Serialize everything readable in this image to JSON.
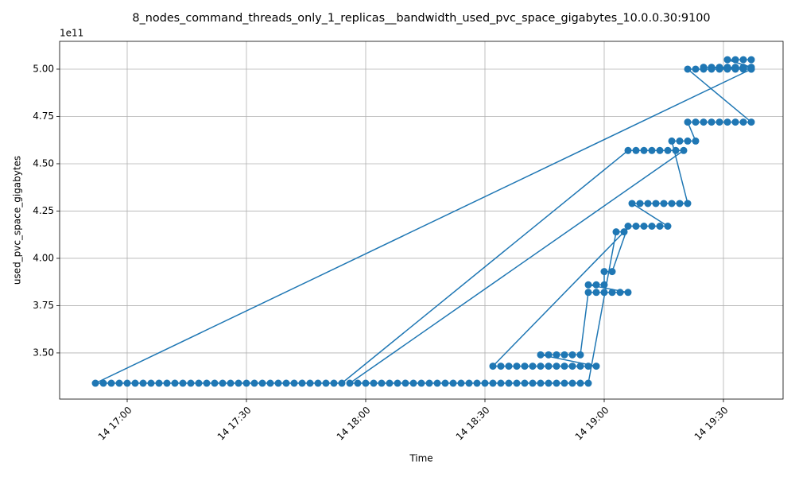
{
  "chart_data": {
    "type": "line",
    "title": "8_nodes_command_threads_only_1_replicas__bandwidth_used_pvc_space_gigabytes_10.0.0.30:9100",
    "x_label": "Time",
    "y_label": "used_pvc_space_gigabytes",
    "y_offset_label": "1e11",
    "color": "#1f77b4",
    "grid": true,
    "markers": true,
    "xlim": [
      "14 16:43",
      "14 19:45"
    ],
    "xticks": [
      "14 17:00",
      "14 17:30",
      "14 18:00",
      "14 18:30",
      "14 19:00",
      "14 19:30"
    ],
    "ylim": [
      3.256,
      5.147
    ],
    "yticks": [
      {
        "value": 3.5,
        "label": "3.50"
      },
      {
        "value": 3.75,
        "label": "3.75"
      },
      {
        "value": 4.0,
        "label": "4.00"
      },
      {
        "value": 4.25,
        "label": "4.25"
      },
      {
        "value": 4.5,
        "label": "4.50"
      },
      {
        "value": 4.75,
        "label": "4.75"
      },
      {
        "value": 5.0,
        "label": "5.00"
      }
    ],
    "x": [
      "14 19:37",
      "14 16:52",
      "14 16:54",
      "14 16:56",
      "14 16:58",
      "14 17:00",
      "14 17:02",
      "14 17:04",
      "14 17:06",
      "14 17:08",
      "14 17:10",
      "14 17:12",
      "14 17:14",
      "14 17:16",
      "14 17:18",
      "14 17:20",
      "14 17:22",
      "14 17:24",
      "14 17:26",
      "14 17:28",
      "14 17:30",
      "14 17:32",
      "14 17:34",
      "14 17:36",
      "14 17:38",
      "14 17:40",
      "14 17:42",
      "14 17:44",
      "14 17:46",
      "14 17:48",
      "14 17:50",
      "14 17:52",
      "14 17:54",
      "14 19:06",
      "14 19:08",
      "14 19:10",
      "14 19:12",
      "14 19:14",
      "14 19:16",
      "14 19:18",
      "14 19:20",
      "14 17:56",
      "14 17:58",
      "14 18:00",
      "14 18:02",
      "14 18:04",
      "14 18:06",
      "14 18:08",
      "14 18:10",
      "14 18:12",
      "14 18:14",
      "14 18:16",
      "14 18:18",
      "14 18:20",
      "14 18:22",
      "14 18:24",
      "14 18:26",
      "14 18:28",
      "14 18:30",
      "14 18:32",
      "14 18:34",
      "14 18:36",
      "14 18:38",
      "14 18:40",
      "14 18:42",
      "14 18:44",
      "14 18:46",
      "14 18:48",
      "14 18:50",
      "14 18:52",
      "14 18:54",
      "14 18:56",
      "14 19:03",
      "14 19:05",
      "14 18:32",
      "14 18:34",
      "14 18:36",
      "14 18:38",
      "14 18:40",
      "14 18:42",
      "14 18:44",
      "14 18:46",
      "14 18:48",
      "14 18:50",
      "14 18:52",
      "14 18:54",
      "14 18:56",
      "14 18:58",
      "14 18:44",
      "14 18:46",
      "14 18:48",
      "14 18:50",
      "14 18:52",
      "14 18:54",
      "14 18:56",
      "14 18:58",
      "14 19:00",
      "14 19:02",
      "14 19:04",
      "14 19:06",
      "14 18:56",
      "14 18:58",
      "14 19:00",
      "14 19:00",
      "14 19:02",
      "14 19:06",
      "14 19:08",
      "14 19:10",
      "14 19:12",
      "14 19:14",
      "14 19:16",
      "14 19:07",
      "14 19:09",
      "14 19:11",
      "14 19:13",
      "14 19:15",
      "14 19:17",
      "14 19:19",
      "14 19:21",
      "14 19:17",
      "14 19:19",
      "14 19:21",
      "14 19:23",
      "14 19:21",
      "14 19:23",
      "14 19:25",
      "14 19:27",
      "14 19:29",
      "14 19:31",
      "14 19:33",
      "14 19:35",
      "14 19:37",
      "14 19:21",
      "14 19:23",
      "14 19:25",
      "14 19:27",
      "14 19:29",
      "14 19:31",
      "14 19:33",
      "14 19:35",
      "14 19:37",
      "14 19:25",
      "14 19:27",
      "14 19:29",
      "14 19:31",
      "14 19:33",
      "14 19:35",
      "14 19:37",
      "14 19:31",
      "14 19:33",
      "14 19:35",
      "14 19:37"
    ],
    "values": [
      5.0,
      3.34,
      3.34,
      3.34,
      3.34,
      3.34,
      3.34,
      3.34,
      3.34,
      3.34,
      3.34,
      3.34,
      3.34,
      3.34,
      3.34,
      3.34,
      3.34,
      3.34,
      3.34,
      3.34,
      3.34,
      3.34,
      3.34,
      3.34,
      3.34,
      3.34,
      3.34,
      3.34,
      3.34,
      3.34,
      3.34,
      3.34,
      3.34,
      4.57,
      4.57,
      4.57,
      4.57,
      4.57,
      4.57,
      4.57,
      4.57,
      3.34,
      3.34,
      3.34,
      3.34,
      3.34,
      3.34,
      3.34,
      3.34,
      3.34,
      3.34,
      3.34,
      3.34,
      3.34,
      3.34,
      3.34,
      3.34,
      3.34,
      3.34,
      3.34,
      3.34,
      3.34,
      3.34,
      3.34,
      3.34,
      3.34,
      3.34,
      3.34,
      3.34,
      3.34,
      3.34,
      3.34,
      4.14,
      4.14,
      3.43,
      3.43,
      3.43,
      3.43,
      3.43,
      3.43,
      3.43,
      3.43,
      3.43,
      3.43,
      3.43,
      3.43,
      3.43,
      3.43,
      3.49,
      3.49,
      3.49,
      3.49,
      3.49,
      3.49,
      3.82,
      3.82,
      3.82,
      3.82,
      3.82,
      3.82,
      3.86,
      3.86,
      3.86,
      3.93,
      3.93,
      4.17,
      4.17,
      4.17,
      4.17,
      4.17,
      4.17,
      4.29,
      4.29,
      4.29,
      4.29,
      4.29,
      4.29,
      4.29,
      4.29,
      4.62,
      4.62,
      4.62,
      4.62,
      4.72,
      4.72,
      4.72,
      4.72,
      4.72,
      4.72,
      4.72,
      4.72,
      4.72,
      5.0,
      5.0,
      5.0,
      5.0,
      5.0,
      5.0,
      5.0,
      5.0,
      5.0,
      5.01,
      5.01,
      5.01,
      5.01,
      5.01,
      5.01,
      5.01,
      5.05,
      5.05,
      5.05,
      5.05
    ]
  }
}
